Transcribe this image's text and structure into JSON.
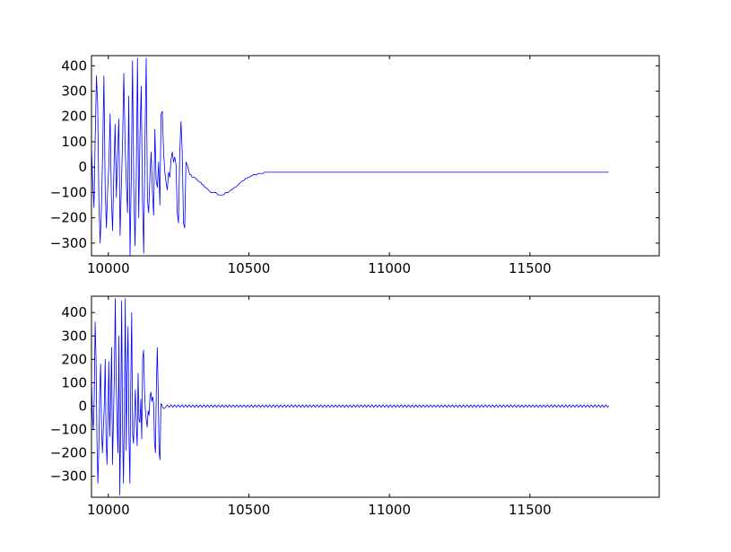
{
  "figure": {
    "background": "#ffffff",
    "line_color": "#0000ff"
  },
  "chart_data": [
    {
      "type": "line",
      "title": "",
      "xlabel": "",
      "ylabel": "",
      "xlim": [
        9940,
        11960
      ],
      "ylim": [
        -350,
        440
      ],
      "grid": false,
      "x_ticks": [
        10000,
        10500,
        11000,
        11500
      ],
      "x_tick_labels": [
        "10000",
        "10500",
        "11000",
        "11500"
      ],
      "y_ticks": [
        400,
        300,
        200,
        100,
        0,
        -100,
        -200,
        -300
      ],
      "y_tick_labels": [
        "400",
        "300",
        "200",
        "100",
        "0",
        "−100",
        "−200",
        "−300"
      ],
      "series": [
        {
          "x_start": 9940,
          "x_step": 5,
          "values": [
            80,
            -60,
            -160,
            120,
            360,
            240,
            -150,
            -300,
            -160,
            60,
            360,
            -80,
            -240,
            -90,
            10,
            210,
            -120,
            -250,
            -20,
            170,
            -120,
            50,
            190,
            -270,
            -80,
            100,
            370,
            100,
            -60,
            -180,
            280,
            -350,
            -50,
            420,
            -80,
            -310,
            -50,
            430,
            -200,
            120,
            320,
            -120,
            -340,
            100,
            430,
            -130,
            -180,
            -40,
            60,
            -90,
            -190,
            150,
            -50,
            -80,
            20,
            -150,
            210,
            220,
            60,
            -20,
            -60,
            -90,
            -20,
            -40,
            30,
            60,
            20,
            40,
            10,
            -180,
            -220,
            60,
            180,
            60,
            -220,
            -240,
            20,
            10,
            -10,
            -30,
            -30,
            -40,
            -40,
            -40,
            -45,
            -50,
            -55,
            -60,
            -60,
            -70,
            -70,
            -80,
            -80,
            -85,
            -90,
            -95,
            -100,
            -100,
            -100,
            -100,
            -100,
            -105,
            -110,
            -110,
            -110,
            -110,
            -110,
            -105,
            -100,
            -100,
            -100,
            -95,
            -90,
            -90,
            -85,
            -80,
            -80,
            -75,
            -70,
            -65,
            -60,
            -55,
            -55,
            -50,
            -45,
            -45,
            -40,
            -40,
            -35,
            -35,
            -30,
            -30,
            -30,
            -30,
            -25,
            -25,
            -25,
            -25,
            -25,
            -20,
            -20,
            -20,
            -20,
            -20,
            -20,
            -20,
            -20,
            -20,
            -20,
            -20,
            -20,
            -20,
            -20,
            -20,
            -20,
            -20,
            -20,
            -20,
            -20,
            -20,
            -20,
            -20,
            -20,
            -20,
            -20,
            -20,
            -20,
            -20,
            -20,
            -20,
            -20,
            -20,
            -20,
            -20,
            -20,
            -20,
            -20,
            -20,
            -20,
            -20,
            -20,
            -20,
            -20,
            -20,
            -20,
            -20,
            -20,
            -20,
            -20,
            -20,
            -20,
            -20,
            -20,
            -20,
            -20,
            -20,
            -20,
            -20,
            -20,
            -20,
            -20,
            -20,
            -20,
            -20,
            -20,
            -20,
            -20,
            -20,
            -20,
            -20,
            -20,
            -20,
            -20,
            -20,
            -20,
            -20,
            -20,
            -20,
            -20,
            -20,
            -20,
            -20,
            -20,
            -20,
            -20,
            -20,
            -20,
            -20,
            -20,
            -20,
            -20,
            -20,
            -20,
            -20,
            -20,
            -20,
            -20,
            -20,
            -20,
            -20,
            -20,
            -20,
            -20,
            -20,
            -20,
            -20,
            -20,
            -20,
            -20,
            -20,
            -20,
            -20,
            -20,
            -20,
            -20,
            -20,
            -20,
            -20,
            -20,
            -20,
            -20,
            -20,
            -20,
            -20,
            -20,
            -20,
            -20,
            -20,
            -20,
            -20,
            -20,
            -20,
            -20,
            -20,
            -20,
            -20,
            -20,
            -20,
            -20,
            -20,
            -20,
            -20,
            -20,
            -20,
            -20,
            -20,
            -20,
            -20,
            -20,
            -20,
            -20,
            -20,
            -20,
            -20,
            -20,
            -20,
            -20,
            -20,
            -20,
            -20,
            -20,
            -20,
            -20,
            -20,
            -20,
            -20,
            -20,
            -20,
            -20,
            -20,
            -20,
            -20,
            -20,
            -20,
            -20,
            -20,
            -20,
            -20,
            -20,
            -20,
            -20,
            -20,
            -20,
            -20,
            -20,
            -20,
            -20,
            -20,
            -20,
            -20,
            -20,
            -20,
            -20,
            -20,
            -20,
            -20,
            -20,
            -20,
            -20,
            -20,
            -20,
            -20,
            -20,
            -20,
            -20,
            -20,
            -20,
            -20,
            -20,
            -20,
            -20,
            -20,
            -20,
            -20,
            -20,
            -20,
            -20,
            -20,
            -20,
            -20,
            -20,
            -20,
            -20,
            -20,
            -20,
            -20,
            -20,
            -20,
            -20,
            -20,
            -20,
            -20,
            -20,
            -20,
            -20,
            -20,
            -20,
            -20,
            -20,
            -20,
            -20,
            -20,
            -20,
            -20,
            -20,
            -20,
            -20,
            -20,
            -20,
            -20,
            -20,
            -20,
            -20,
            -20,
            -20,
            -20,
            -20,
            -20,
            -20,
            -20,
            -20,
            -20,
            -20,
            -20,
            -20,
            -20,
            -20,
            -20,
            -20,
            -20,
            -20,
            -20,
            -20,
            -20,
            -20,
            -20,
            -20
          ],
          "x_end": 11780
        }
      ]
    },
    {
      "type": "line",
      "title": "",
      "xlabel": "",
      "ylabel": "",
      "xlim": [
        9940,
        11960
      ],
      "ylim": [
        -390,
        470
      ],
      "grid": false,
      "x_ticks": [
        10000,
        10500,
        11000,
        11500
      ],
      "x_tick_labels": [
        "10000",
        "10500",
        "11000",
        "11500"
      ],
      "y_ticks": [
        400,
        300,
        200,
        100,
        0,
        -100,
        -200,
        -300
      ],
      "y_tick_labels": [
        "400",
        "300",
        "200",
        "100",
        "0",
        "−100",
        "−200",
        "−300"
      ],
      "series": [
        {
          "x_start": 9940,
          "x_step": 5,
          "values": [
            120,
            -40,
            -100,
            40,
            360,
            200,
            -150,
            -330,
            -190,
            60,
            180,
            -90,
            -200,
            -100,
            0,
            200,
            -140,
            -250,
            -40,
            190,
            -130,
            40,
            250,
            -250,
            -60,
            120,
            460,
            110,
            -70,
            -200,
            300,
            -380,
            -60,
            450,
            -90,
            -330,
            -40,
            460,
            -190,
            140,
            340,
            -120,
            -330,
            90,
            400,
            -120,
            -160,
            -40,
            70,
            -80,
            -170,
            140,
            -60,
            -70,
            30,
            -140,
            200,
            240,
            70,
            -20,
            -60,
            -90,
            -20,
            -40,
            40,
            60,
            20,
            40,
            10,
            -160,
            -200,
            80,
            250,
            70,
            -200,
            -230,
            10,
            5,
            -5,
            -10,
            -10,
            -5,
            0,
            5,
            0,
            -5,
            0,
            5,
            0,
            -5,
            0,
            5,
            0,
            -5,
            0,
            5,
            0,
            -5,
            0,
            5,
            0,
            -5,
            0,
            5,
            0,
            -5,
            0,
            5,
            0,
            -5,
            0,
            5,
            0,
            -5,
            0,
            5,
            0,
            -5,
            0,
            5,
            0,
            -5,
            0,
            5,
            0,
            -5,
            0,
            5,
            0,
            -5,
            0,
            5,
            0,
            -5,
            0,
            5,
            0,
            -5,
            0,
            5,
            0,
            -5,
            0,
            5,
            0,
            -5,
            0,
            5,
            0,
            -5,
            0,
            5,
            0,
            -5,
            0,
            5,
            0,
            -5,
            0,
            5,
            0,
            -5,
            0,
            5,
            0,
            -5,
            0,
            5,
            0,
            -5,
            0,
            5,
            0,
            -5,
            0,
            5,
            0,
            -5,
            0,
            5,
            0,
            -5,
            0,
            5,
            0,
            -5,
            0,
            5,
            0,
            -5,
            0,
            5,
            0,
            -5,
            0,
            5,
            0,
            -5,
            0,
            5,
            0,
            -5,
            0,
            5,
            0,
            -5,
            0,
            5,
            0,
            -5,
            0,
            5,
            0,
            -5,
            0,
            5,
            0,
            -5,
            0,
            5,
            0,
            -5,
            0,
            5,
            0,
            -5,
            0,
            5,
            0,
            -5,
            0,
            5,
            0,
            -5,
            0,
            5,
            0,
            -5,
            0,
            5,
            0,
            -5,
            0,
            5,
            0,
            -5,
            0,
            5,
            0,
            -5,
            0,
            5,
            0,
            -5,
            0,
            5,
            0,
            -5,
            0,
            5,
            0,
            -5,
            0,
            5,
            0,
            -5,
            0,
            5,
            0,
            -5,
            0,
            5,
            0,
            -5,
            0,
            5,
            0,
            -5,
            0,
            5,
            0,
            -5,
            0,
            5,
            0,
            -5,
            0,
            5,
            0,
            -5,
            0,
            5,
            0,
            -5,
            0,
            5,
            0,
            -5,
            0,
            5,
            0,
            -5,
            0,
            5,
            0,
            -5,
            0,
            5,
            0,
            -5,
            0,
            5,
            0,
            -5,
            0,
            5,
            0,
            -5,
            0,
            5,
            0,
            -5,
            0,
            5,
            0,
            -5,
            0,
            5,
            0,
            -5,
            0,
            5,
            0,
            -5,
            0,
            5,
            0,
            -5,
            0,
            5,
            0,
            -5,
            0,
            5,
            0,
            -5,
            0,
            5,
            0,
            -5,
            0,
            5,
            0,
            -5,
            0,
            5,
            0,
            -5,
            0,
            5,
            0,
            -5,
            0,
            5,
            0,
            -5,
            0,
            5,
            0,
            -5,
            0,
            5,
            0,
            -5,
            0,
            5,
            0,
            -5,
            0,
            5,
            0,
            -5,
            0,
            5,
            0,
            -5,
            0,
            5,
            0,
            -5,
            0,
            5,
            0,
            -5,
            0,
            5,
            0,
            -5,
            0,
            5,
            0,
            -5,
            0,
            5,
            0,
            -5,
            0,
            5,
            0,
            -5,
            0,
            5,
            0,
            -5,
            0,
            5,
            0,
            -5,
            0,
            5,
            0,
            -5,
            0,
            5,
            0,
            -5,
            0,
            5,
            0,
            -5,
            0,
            5,
            0,
            -5,
            0,
            5,
            0,
            -5,
            0,
            5,
            0,
            -5,
            0,
            5,
            0,
            -5,
            0,
            5,
            0,
            -5,
            0,
            5,
            0,
            -5,
            0,
            5,
            0,
            -5,
            0,
            5,
            0,
            -5,
            0,
            5,
            0,
            -5,
            0,
            5,
            0,
            -5,
            0,
            5,
            0,
            -5,
            0,
            5,
            0,
            -5,
            0,
            5,
            0,
            -5,
            0,
            5,
            0,
            -5,
            0,
            5,
            0,
            -5,
            0,
            5,
            0,
            -5,
            0,
            5,
            0,
            -5,
            0,
            5,
            0,
            -5,
            0,
            5,
            0,
            -5,
            0,
            5,
            0,
            -5,
            0,
            5,
            0,
            -5,
            0,
            5,
            0,
            -5,
            0,
            5,
            0,
            -5,
            0,
            5,
            0,
            -5,
            0,
            5,
            0,
            -5,
            0,
            5,
            0,
            -5,
            0,
            5,
            0,
            -5,
            0,
            5,
            0,
            -5,
            0,
            5,
            0,
            -5,
            0,
            5,
            0,
            -5,
            0,
            5,
            0,
            -5,
            0,
            5,
            0,
            -5,
            0,
            5,
            0,
            -5,
            0,
            5,
            0,
            -5,
            0
          ],
          "x_end": 11780
        }
      ]
    }
  ]
}
